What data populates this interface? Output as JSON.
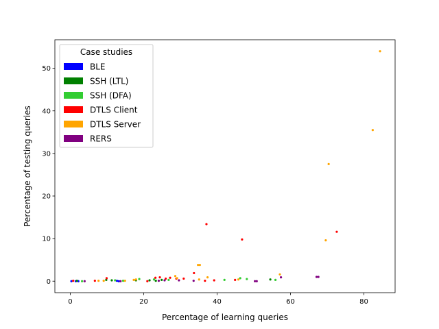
{
  "chart_data": {
    "type": "scatter",
    "title": "",
    "xlabel": "Percentage of learning queries",
    "ylabel": "Percentage of testing queries",
    "xlim": [
      -4.2,
      88.5
    ],
    "ylim": [
      -2.7,
      56.7
    ],
    "xticks": [
      0,
      20,
      40,
      60,
      80
    ],
    "yticks": [
      0,
      10,
      20,
      30,
      40,
      50
    ],
    "grid": false,
    "legend": {
      "title": "Case studies",
      "placement": "top-left"
    },
    "series": [
      {
        "name": "BLE",
        "color": "#0000ff",
        "points": [
          [
            0.3,
            0.0
          ],
          [
            1.5,
            0.0
          ],
          [
            2.2,
            0.0
          ],
          [
            12.7,
            0.1
          ],
          [
            13.2,
            0.0
          ]
        ]
      },
      {
        "name": "SSH (LTL)",
        "color": "#008000",
        "points": [
          [
            1.8,
            0.1
          ],
          [
            9.8,
            0.3
          ],
          [
            11.3,
            0.2
          ],
          [
            17.9,
            0.2
          ],
          [
            21.6,
            0.2
          ],
          [
            23.3,
            0.1
          ],
          [
            24.9,
            0.3
          ],
          [
            54.5,
            0.4
          ]
        ]
      },
      {
        "name": "SSH (DFA)",
        "color": "#32cd32",
        "points": [
          [
            3.2,
            0.0
          ],
          [
            12.2,
            0.2
          ],
          [
            14.4,
            0.1
          ],
          [
            18.8,
            0.5
          ],
          [
            22.8,
            0.4
          ],
          [
            26.8,
            0.3
          ],
          [
            42.0,
            0.3
          ],
          [
            46.3,
            0.7
          ],
          [
            48.1,
            0.5
          ],
          [
            55.9,
            0.3
          ]
        ]
      },
      {
        "name": "DTLS Client",
        "color": "#ff0000",
        "points": [
          [
            0.8,
            0.1
          ],
          [
            6.7,
            0.1
          ],
          [
            9.9,
            0.7
          ],
          [
            21.0,
            0.0
          ],
          [
            23.2,
            0.8
          ],
          [
            24.4,
            0.9
          ],
          [
            26.0,
            0.6
          ],
          [
            27.2,
            0.8
          ],
          [
            28.9,
            0.6
          ],
          [
            30.9,
            0.6
          ],
          [
            33.7,
            1.9
          ],
          [
            36.7,
            0.1
          ],
          [
            37.1,
            13.4
          ],
          [
            39.2,
            0.2
          ],
          [
            44.9,
            0.3
          ],
          [
            46.8,
            9.8
          ],
          [
            72.6,
            11.6
          ]
        ]
      },
      {
        "name": "DTLS Server",
        "color": "#ffa500",
        "points": [
          [
            7.7,
            0.1
          ],
          [
            9.1,
            0.1
          ],
          [
            14.9,
            0.1
          ],
          [
            17.3,
            0.3
          ],
          [
            17.9,
            0.4
          ],
          [
            28.6,
            1.2
          ],
          [
            29.1,
            0.7
          ],
          [
            34.8,
            3.8
          ],
          [
            35.3,
            3.8
          ],
          [
            35.1,
            0.4
          ],
          [
            37.4,
            0.9
          ],
          [
            45.8,
            0.4
          ],
          [
            57.1,
            1.6
          ],
          [
            69.6,
            9.6
          ],
          [
            70.4,
            27.5
          ],
          [
            82.4,
            35.5
          ],
          [
            84.4,
            54.0
          ]
        ]
      },
      {
        "name": "RERS",
        "color": "#800080",
        "points": [
          [
            3.9,
            0.0
          ],
          [
            13.7,
            0.0
          ],
          [
            24.1,
            0.1
          ],
          [
            25.7,
            0.2
          ],
          [
            29.6,
            0.2
          ],
          [
            33.6,
            0.1
          ],
          [
            50.3,
            0.0
          ],
          [
            50.8,
            0.0
          ],
          [
            57.4,
            0.9
          ],
          [
            67.1,
            1.0
          ],
          [
            67.6,
            1.0
          ]
        ]
      }
    ]
  }
}
